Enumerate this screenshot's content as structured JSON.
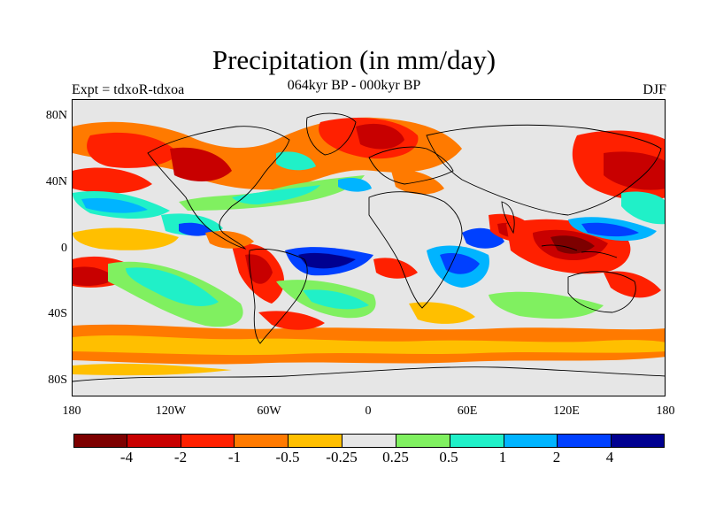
{
  "title": "Precipitation (in mm/day)",
  "subtitle": "064kyr BP - 000kyr BP",
  "experiment": "Expt = tdxoR-tdxoa",
  "season": "DJF",
  "lat_labels": [
    "80N",
    "40N",
    "0",
    "40S",
    "80S"
  ],
  "lon_labels": [
    "180",
    "120W",
    "60W",
    "0",
    "60E",
    "120E",
    "180"
  ],
  "colorbar": {
    "colors": [
      "#7d0000",
      "#c80000",
      "#ff2000",
      "#ff7a00",
      "#ffbf00",
      "#e6e6e6",
      "#80f060",
      "#20f0c8",
      "#00b4ff",
      "#0040ff",
      "#000090"
    ],
    "labels": [
      "-4",
      "-2",
      "-1",
      "-0.5",
      "-0.25",
      "0.25",
      "0.5",
      "1",
      "2",
      "4"
    ]
  },
  "colors": {
    "background_neutral": "#e6e6e6",
    "coast": "#000000"
  }
}
